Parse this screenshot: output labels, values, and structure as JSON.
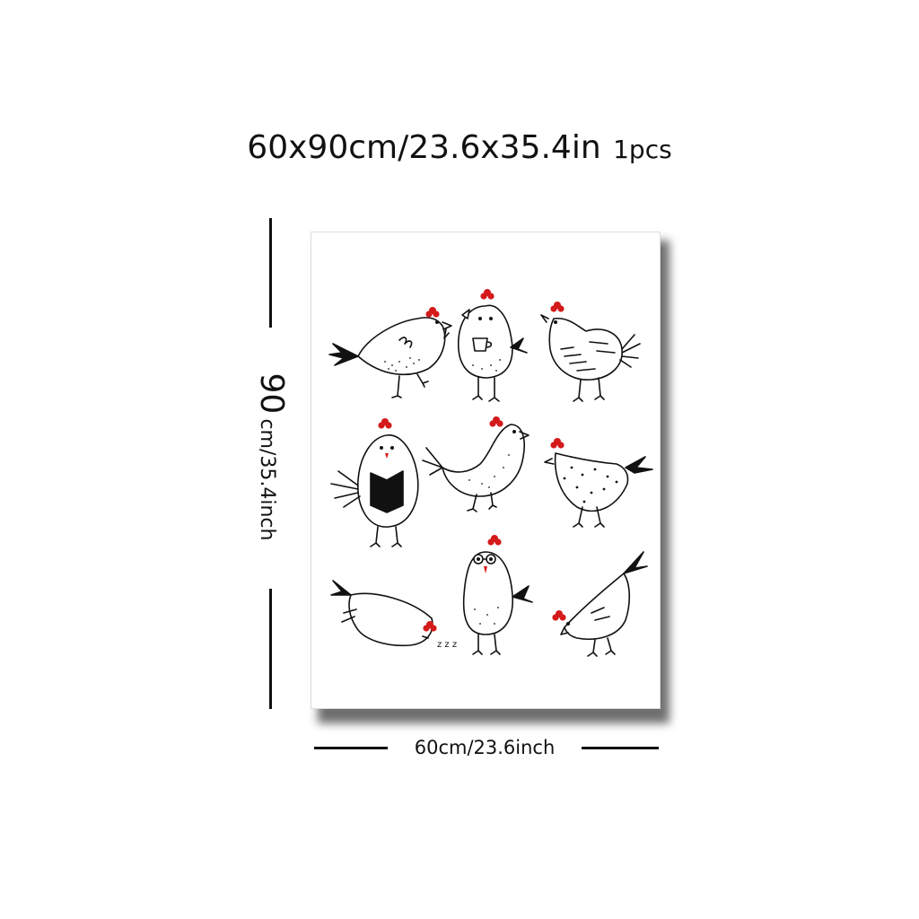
{
  "header": {
    "size_text": "60x90cm/23.6x35.4in",
    "quantity_text": "1pcs"
  },
  "dimensions": {
    "height_number": "90",
    "height_unit_text": "cm/35.4inch",
    "width_text": "60cm/23.6inch"
  },
  "artwork": {
    "subject": "nine hand-drawn chickens",
    "chickens": [
      {
        "pose": "walking-right"
      },
      {
        "pose": "holding-coffee-cup"
      },
      {
        "pose": "striped-hen"
      },
      {
        "pose": "reading-book"
      },
      {
        "pose": "pecking"
      },
      {
        "pose": "polka-dot-hen"
      },
      {
        "pose": "sleeping",
        "sleep_text": "z z z"
      },
      {
        "pose": "wearing-glasses"
      },
      {
        "pose": "bending-down"
      }
    ]
  },
  "colors": {
    "comb": "#d41a1a",
    "ink": "#111111",
    "background": "#ffffff",
    "shadow": "#6f6f6f"
  }
}
